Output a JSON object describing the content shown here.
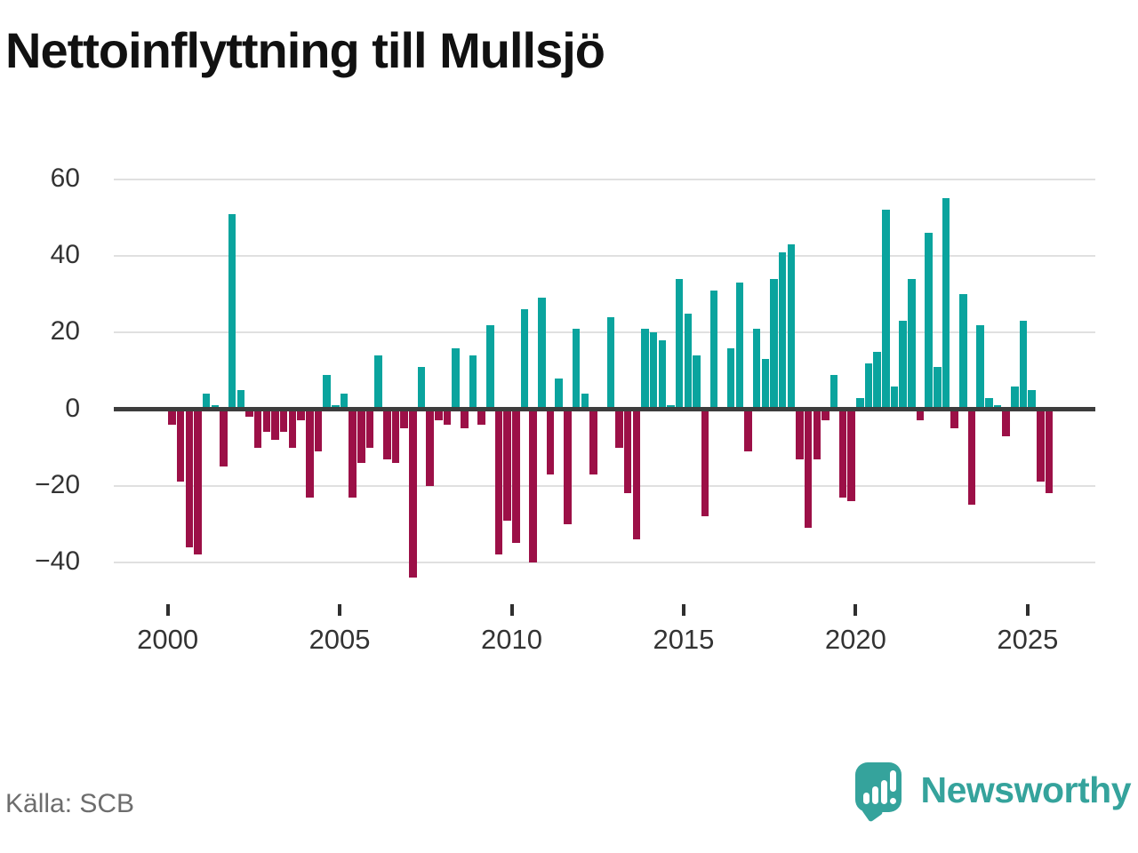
{
  "title": "Nettoinflyttning till Mullsjö",
  "source": "Källa: SCB",
  "logo": {
    "text": "Newsworthy",
    "mark": "newsworthy-bubble-chart-icon",
    "color": "#35a39c"
  },
  "chart_data": {
    "type": "bar",
    "frequency": "quarterly",
    "start_period": "2000 Q1",
    "end_period": "2025 Q3",
    "values": [
      -4,
      -19,
      -36,
      -38,
      4,
      1,
      -15,
      51,
      5,
      -2,
      -10,
      -6,
      -8,
      -6,
      -10,
      -3,
      -23,
      -11,
      9,
      1,
      4,
      -23,
      -14,
      -10,
      14,
      -13,
      -14,
      -5,
      -44,
      11,
      -20,
      -3,
      -4,
      16,
      -5,
      14,
      -4,
      22,
      -38,
      -29,
      -35,
      26,
      -40,
      29,
      -17,
      8,
      -30,
      21,
      4,
      -17,
      0,
      24,
      -10,
      -22,
      -34,
      21,
      20,
      18,
      1,
      34,
      25,
      14,
      -28,
      31,
      0,
      16,
      33,
      -11,
      21,
      13,
      34,
      41,
      43,
      -13,
      -31,
      -13,
      -3,
      9,
      -23,
      -24,
      3,
      12,
      15,
      52,
      6,
      23,
      34,
      -3,
      46,
      11,
      55,
      -5,
      30,
      -25,
      22,
      3,
      1,
      -7,
      6,
      23,
      5,
      -19,
      -22
    ],
    "x_tick_years": [
      2000,
      2005,
      2010,
      2015,
      2020,
      2025
    ],
    "x_tick_labels": [
      "2000",
      "2005",
      "2010",
      "2015",
      "2020",
      "2025"
    ],
    "y_ticks": [
      60,
      40,
      20,
      0,
      -20,
      -40
    ],
    "y_tick_labels": [
      "60",
      "40",
      "20",
      "0",
      "−20",
      "−40"
    ],
    "ylim": [
      -55,
      65
    ],
    "grid": true,
    "legend": false,
    "colors": {
      "positive": "#0aa49e",
      "negative": "#9c1047",
      "gridline": "#e0e0e0",
      "zeroline": "#3d3d3d",
      "axis_text": "#333333"
    }
  }
}
